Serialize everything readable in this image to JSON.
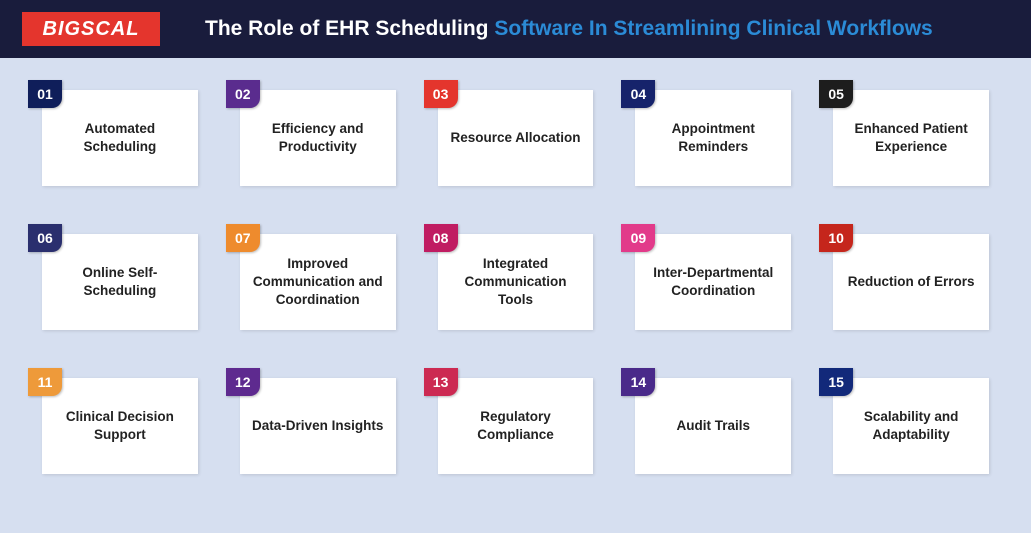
{
  "header": {
    "logo_text": "BIGSCAL",
    "title_part1": "The Role of EHR Scheduling ",
    "title_part2": "Software In Streamlining Clinical Workflows",
    "header_bg": "#191c3c",
    "logo_bg": "#e4352d",
    "title_color_a": "#ffffff",
    "title_color_b": "#2b8bd6"
  },
  "page_bg": "#d6dff0",
  "card_bg": "#ffffff",
  "grid": {
    "columns": 5,
    "rows": 3,
    "items": [
      {
        "num": "01",
        "label": "Automated Scheduling",
        "color": "#0f1e5a"
      },
      {
        "num": "02",
        "label": "Efficiency and Productivity",
        "color": "#5a2c8e"
      },
      {
        "num": "03",
        "label": "Resource Allocation",
        "color": "#e4352d"
      },
      {
        "num": "04",
        "label": "Appointment Reminders",
        "color": "#16236b"
      },
      {
        "num": "05",
        "label": "Enhanced Patient Experience",
        "color": "#1d1d1d"
      },
      {
        "num": "06",
        "label": "Online Self-Scheduling",
        "color": "#2a2f6e"
      },
      {
        "num": "07",
        "label": "Improved Communication and Coordination",
        "color": "#ee8b2d"
      },
      {
        "num": "08",
        "label": "Integrated Communication Tools",
        "color": "#c01c62"
      },
      {
        "num": "09",
        "label": "Inter-Departmental Coordination",
        "color": "#e23a8a"
      },
      {
        "num": "10",
        "label": "Reduction of Errors",
        "color": "#c5261c"
      },
      {
        "num": "11",
        "label": "Clinical Decision Support",
        "color": "#ee9a3a"
      },
      {
        "num": "12",
        "label": "Data-Driven Insights",
        "color": "#5e2a8f"
      },
      {
        "num": "13",
        "label": "Regulatory Compliance",
        "color": "#cc2a52"
      },
      {
        "num": "14",
        "label": "Audit Trails",
        "color": "#4a2a8a"
      },
      {
        "num": "15",
        "label": "Scalability and Adaptability",
        "color": "#12297a"
      }
    ]
  }
}
